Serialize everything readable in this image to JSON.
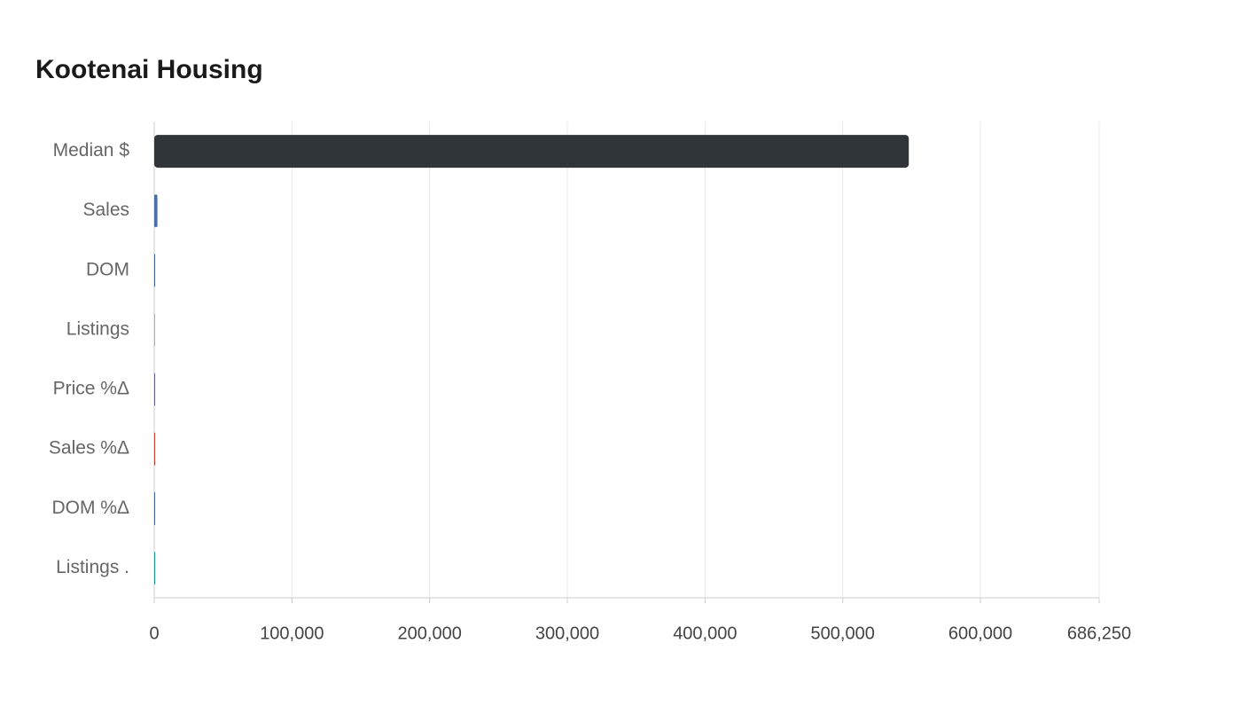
{
  "chart_data": {
    "type": "hbar",
    "title": "Kootenai Housing",
    "categories": [
      "Median $",
      "Sales",
      "DOM",
      "Listings",
      "Price %Δ",
      "Sales %Δ",
      "DOM %Δ",
      "Listings ."
    ],
    "values": [
      548000,
      2300,
      45,
      10,
      6,
      -8,
      12,
      20
    ],
    "colors": [
      "#2f3538",
      "#4a6fa5",
      "#3f5fa0",
      "#b0b0b0",
      "#6a5f9a",
      "#c0392b",
      "#3f5fa0",
      "#1a9c8c"
    ],
    "xlim": [
      0,
      686250
    ],
    "xticks": [
      0,
      {
        "value": 100000,
        "label": "100,000"
      },
      {
        "value": 200000,
        "label": "200,000"
      },
      {
        "value": 300000,
        "label": "300,000"
      },
      {
        "value": 400000,
        "label": "400,000"
      },
      {
        "value": 500000,
        "label": "500,000"
      },
      {
        "value": 600000,
        "label": "600,000"
      },
      {
        "value": 686250,
        "label": "686,250"
      }
    ],
    "grid": true
  }
}
